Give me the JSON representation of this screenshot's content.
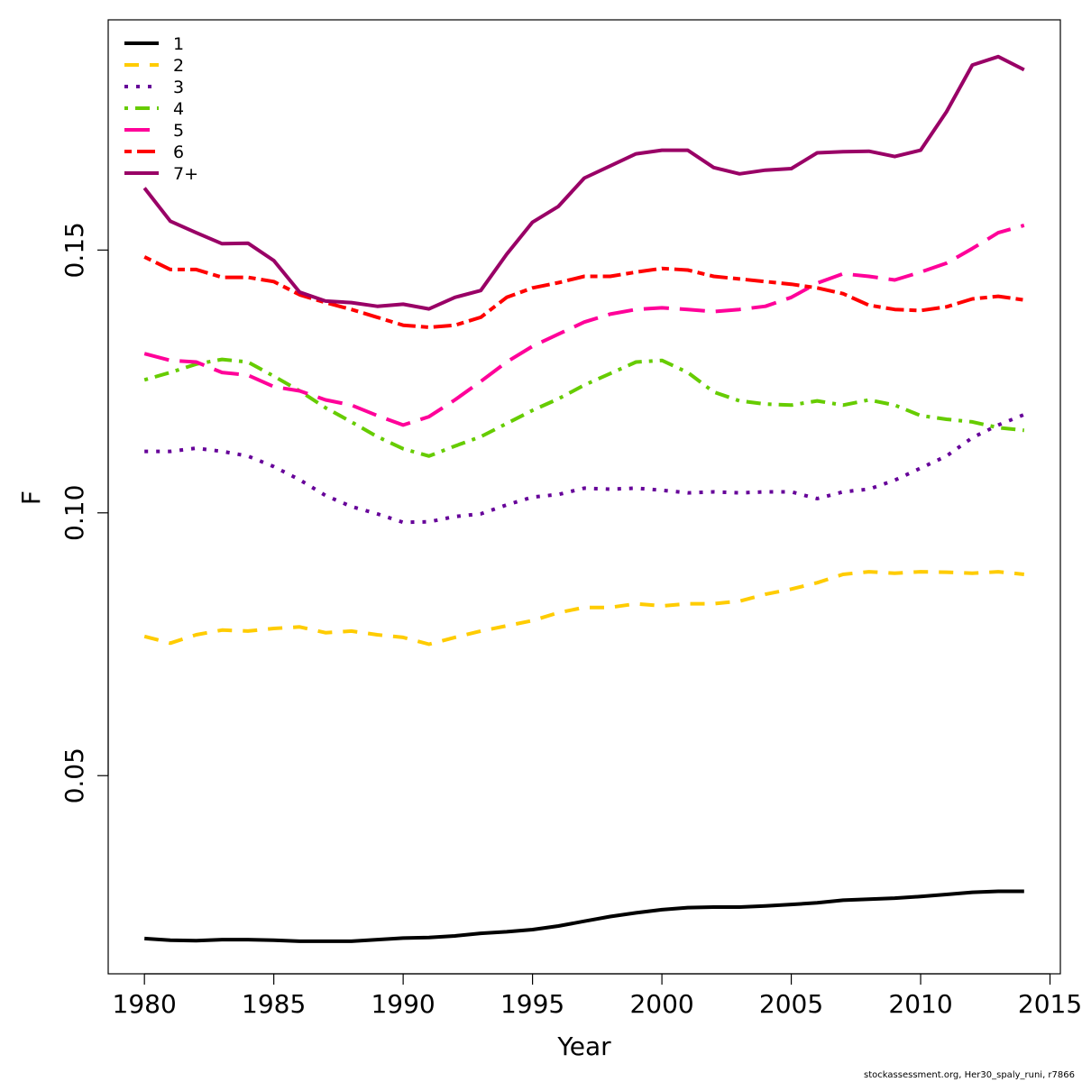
{
  "chart_data": {
    "type": "line",
    "xlabel": "Year",
    "ylabel": "F",
    "xlim": [
      1978.6,
      2015.4
    ],
    "ylim": [
      0.0123,
      0.1938
    ],
    "x_ticks": [
      1980,
      1985,
      1990,
      1995,
      2000,
      2005,
      2010,
      2015
    ],
    "y_ticks": [
      0.05,
      0.1,
      0.15
    ],
    "y_tick_labels": [
      "0.05",
      "0.10",
      "0.15"
    ],
    "legend_position": "top-left",
    "x": [
      1980,
      1981,
      1982,
      1983,
      1984,
      1985,
      1986,
      1987,
      1988,
      1989,
      1990,
      1991,
      1992,
      1993,
      1994,
      1995,
      1996,
      1997,
      1998,
      1999,
      2000,
      2001,
      2002,
      2003,
      2004,
      2005,
      2006,
      2007,
      2008,
      2009,
      2010,
      2011,
      2012,
      2013,
      2014
    ],
    "series": [
      {
        "name": "1",
        "color": "#000000",
        "dash": "solid",
        "values": [
          0.019,
          0.0187,
          0.0186,
          0.0188,
          0.0188,
          0.0187,
          0.0185,
          0.0185,
          0.0185,
          0.0188,
          0.0191,
          0.0192,
          0.0195,
          0.02,
          0.0203,
          0.0207,
          0.0214,
          0.0223,
          0.0232,
          0.0239,
          0.0245,
          0.0249,
          0.025,
          0.025,
          0.0252,
          0.0255,
          0.0258,
          0.0263,
          0.0265,
          0.0267,
          0.027,
          0.0274,
          0.0278,
          0.028,
          0.028
        ]
      },
      {
        "name": "2",
        "color": "#FFCC00",
        "dash": "dashed",
        "values": [
          0.0765,
          0.0752,
          0.0768,
          0.0777,
          0.0775,
          0.078,
          0.0783,
          0.0772,
          0.0775,
          0.0768,
          0.0763,
          0.075,
          0.0763,
          0.0775,
          0.0785,
          0.0795,
          0.081,
          0.082,
          0.082,
          0.0827,
          0.0823,
          0.0827,
          0.0827,
          0.0832,
          0.0845,
          0.0855,
          0.0867,
          0.0883,
          0.0888,
          0.0885,
          0.0888,
          0.0887,
          0.0885,
          0.0888,
          0.0883
        ]
      },
      {
        "name": "3",
        "color": "#660099",
        "dash": "dotted",
        "values": [
          0.1117,
          0.1117,
          0.1123,
          0.1117,
          0.1108,
          0.1088,
          0.1063,
          0.1033,
          0.1012,
          0.0998,
          0.0982,
          0.0983,
          0.0993,
          0.0998,
          0.1015,
          0.103,
          0.1035,
          0.1047,
          0.1045,
          0.1047,
          0.1043,
          0.1038,
          0.104,
          0.1038,
          0.104,
          0.104,
          0.1027,
          0.104,
          0.1045,
          0.1062,
          0.1085,
          0.1108,
          0.1143,
          0.1167,
          0.1187
        ]
      },
      {
        "name": "4",
        "color": "#66CC00",
        "dash": "dotdash",
        "values": [
          0.1253,
          0.1267,
          0.1283,
          0.1292,
          0.1287,
          0.126,
          0.1232,
          0.12,
          0.1173,
          0.1145,
          0.1122,
          0.1108,
          0.1127,
          0.1145,
          0.117,
          0.1195,
          0.1217,
          0.1243,
          0.1265,
          0.1287,
          0.129,
          0.1267,
          0.123,
          0.1213,
          0.1207,
          0.1205,
          0.1213,
          0.1205,
          0.1215,
          0.1205,
          0.1185,
          0.1178,
          0.1173,
          0.1162,
          0.1157
        ]
      },
      {
        "name": "5",
        "color": "#FF0099",
        "dash": "longdash",
        "values": [
          0.1303,
          0.129,
          0.1287,
          0.1267,
          0.1262,
          0.124,
          0.1232,
          0.1215,
          0.1205,
          0.1185,
          0.1167,
          0.1183,
          0.1215,
          0.125,
          0.1287,
          0.1317,
          0.134,
          0.1363,
          0.1378,
          0.1387,
          0.139,
          0.1387,
          0.1383,
          0.1387,
          0.1393,
          0.141,
          0.1437,
          0.1455,
          0.145,
          0.1443,
          0.1458,
          0.1475,
          0.1503,
          0.1533,
          0.1547
        ]
      },
      {
        "name": "6",
        "color": "#FF0000",
        "dash": "twodash",
        "values": [
          0.1487,
          0.1463,
          0.1463,
          0.1448,
          0.1448,
          0.144,
          0.1415,
          0.14,
          0.1387,
          0.1372,
          0.1357,
          0.1353,
          0.1357,
          0.1372,
          0.141,
          0.1428,
          0.1438,
          0.145,
          0.145,
          0.1458,
          0.1465,
          0.1462,
          0.145,
          0.1445,
          0.144,
          0.1435,
          0.1428,
          0.1417,
          0.1395,
          0.1387,
          0.1385,
          0.1392,
          0.1407,
          0.1412,
          0.1405
        ]
      },
      {
        "name": "7+",
        "color": "#990066",
        "dash": "solid",
        "values": [
          0.1618,
          0.1555,
          0.1533,
          0.1512,
          0.1513,
          0.148,
          0.142,
          0.1403,
          0.14,
          0.1393,
          0.1397,
          0.1388,
          0.141,
          0.1423,
          0.1492,
          0.1553,
          0.1583,
          0.1637,
          0.166,
          0.1683,
          0.169,
          0.169,
          0.1657,
          0.1645,
          0.1652,
          0.1655,
          0.1685,
          0.1687,
          0.1688,
          0.1678,
          0.169,
          0.1763,
          0.1852,
          0.1868,
          0.1843
        ]
      }
    ]
  },
  "footer_text": "stockassessment.org, Her30_spaly_runi, r7866"
}
